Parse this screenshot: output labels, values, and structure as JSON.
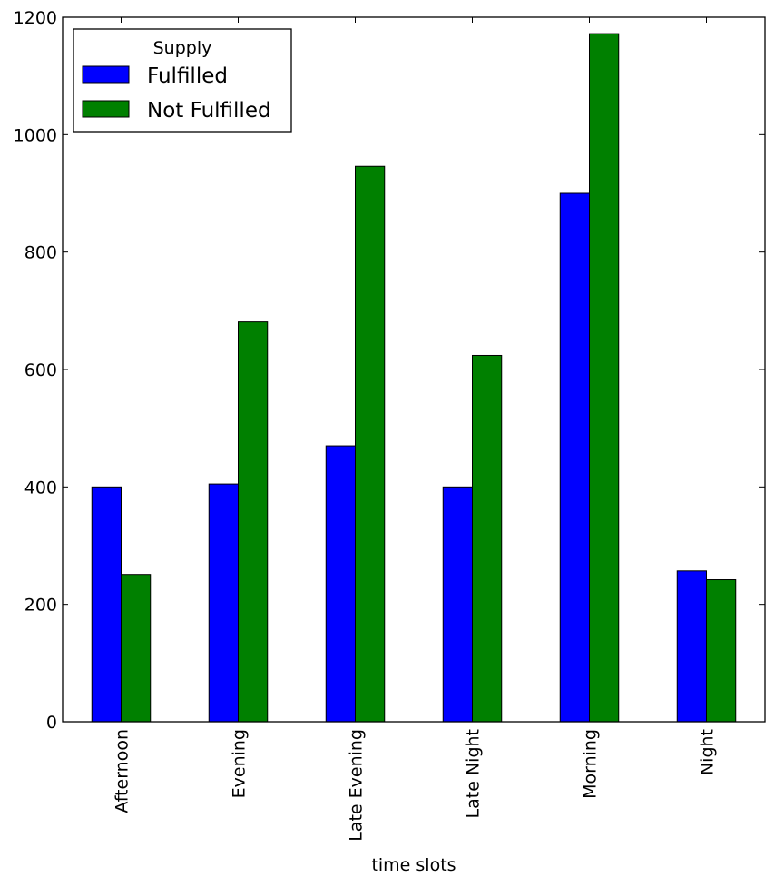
{
  "chart_data": {
    "type": "bar",
    "title": "",
    "xlabel": "time slots",
    "ylabel": "",
    "categories": [
      "Afternoon",
      "Evening",
      "Late Evening",
      "Late Night",
      "Morning",
      "Night"
    ],
    "series": [
      {
        "name": "Fulfilled",
        "color": "#0000ff",
        "values": [
          400,
          405,
          470,
          400,
          900,
          257
        ]
      },
      {
        "name": "Not Fulfilled",
        "color": "#008000",
        "values": [
          251,
          681,
          946,
          624,
          1172,
          242
        ]
      }
    ],
    "ylim": [
      0,
      1200
    ],
    "yticks": [
      "0",
      "200",
      "400",
      "600",
      "800",
      "1000",
      "1200"
    ],
    "legend": {
      "title": "Supply",
      "placement": "top-left"
    },
    "grid": false,
    "xtick_rotation": "vertical"
  }
}
